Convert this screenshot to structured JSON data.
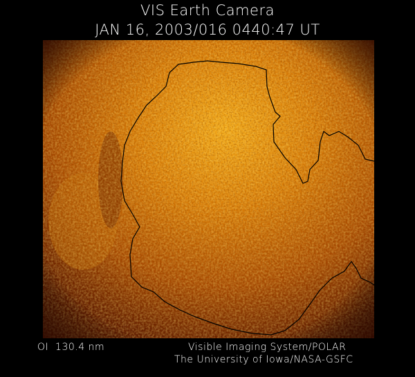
{
  "header": {
    "title": "VIS Earth Camera",
    "timestamp": "JAN 16, 2003/016 0440:47 UT"
  },
  "footer": {
    "filter": "OI  130.4 nm",
    "credit_line1": "Visible Imaging System/POLAR",
    "credit_line2": "The University of Iowa/NASA-GSFC"
  },
  "image": {
    "subject": "auroral-oval-ultraviolet-image",
    "colormap": [
      "#3a0a00",
      "#8a2a00",
      "#d06a00",
      "#f0a010",
      "#ffd040"
    ],
    "overlay": "coastline-outline"
  }
}
